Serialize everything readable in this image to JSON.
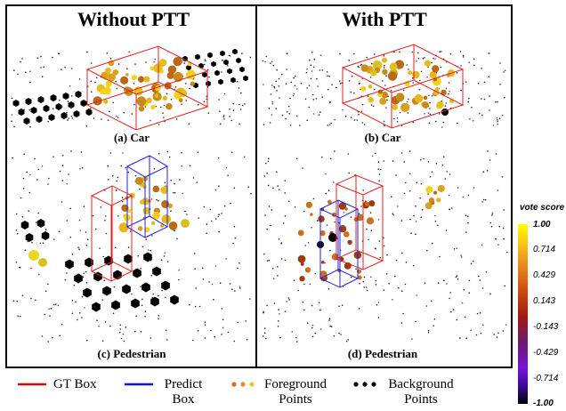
{
  "titles": {
    "left": "Without PTT",
    "right": "With PTT"
  },
  "panels": {
    "a": "(a) Car",
    "b": "(b) Car",
    "c": "(c) Pedestrian",
    "d": "(d) Pedestrian"
  },
  "colorbar": {
    "title": "vote score",
    "ticks": [
      "1.00",
      "0.714",
      "0.429",
      "0.143",
      "-0.143",
      "-0.429",
      "-0.714",
      "-1.00"
    ],
    "colors": {
      "high": "#ffff00",
      "mid": "#b02010",
      "low": "#000000",
      "violet": "#7a10d8"
    }
  },
  "legend": {
    "gt": "GT Box",
    "predict_line1": "Predict",
    "predict_line2": "Box",
    "fg_line1": "Foreground",
    "fg_line2": "Points",
    "bg_line1": "Background",
    "bg_line2": "Points",
    "gt_color": "#e00000",
    "predict_color": "#1010e0",
    "fg_color": "#e08a20",
    "bg_color": "#000000"
  }
}
